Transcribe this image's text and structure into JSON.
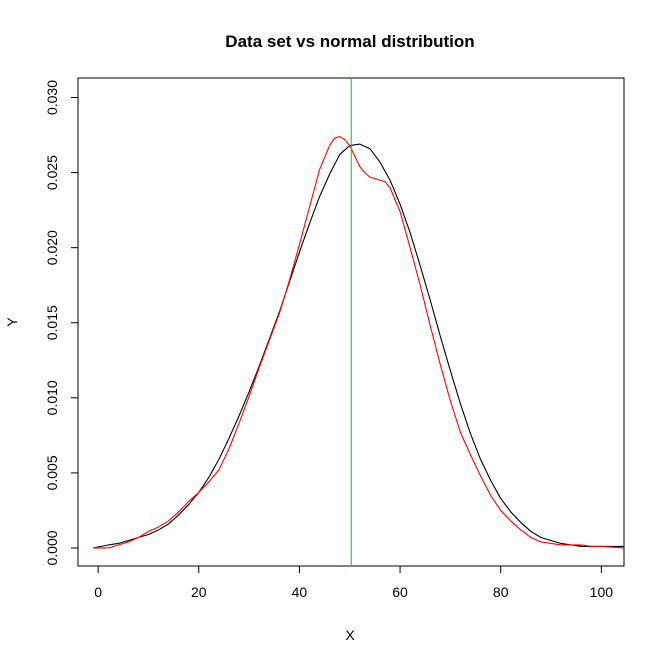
{
  "chart_data": {
    "type": "line",
    "title": "Data set vs normal distribution",
    "xlabel": "X",
    "ylabel": "Y",
    "xlim": [
      -4,
      104.5
    ],
    "ylim": [
      -0.0012,
      0.0313
    ],
    "x_ticks": [
      0,
      20,
      40,
      60,
      80,
      100
    ],
    "x_tick_labels": [
      "0",
      "20",
      "40",
      "60",
      "80",
      "100"
    ],
    "y_ticks": [
      0.0,
      0.005,
      0.01,
      0.015,
      0.02,
      0.025,
      0.03
    ],
    "y_tick_labels": [
      "0.000",
      "0.005",
      "0.010",
      "0.015",
      "0.020",
      "0.025",
      "0.030"
    ],
    "grid": false,
    "series": [
      {
        "color": "#000000",
        "x": [
          -1,
          2,
          4,
          6,
          8,
          10,
          12,
          14,
          16,
          18,
          20,
          22,
          24,
          26,
          28,
          30,
          32,
          34,
          36,
          38,
          40,
          42,
          44,
          46,
          48,
          50,
          52,
          54,
          56,
          58,
          60,
          62,
          64,
          66,
          68,
          70,
          72,
          74,
          76,
          78,
          80,
          82,
          84,
          86,
          88,
          90,
          92,
          94,
          96,
          98,
          100,
          104.5
        ],
        "y": [
          0.0,
          0.0002,
          0.0003,
          0.0005,
          0.0007,
          0.0009,
          0.0012,
          0.0016,
          0.0022,
          0.0029,
          0.0037,
          0.0047,
          0.0059,
          0.0073,
          0.0088,
          0.0104,
          0.0121,
          0.0139,
          0.0157,
          0.0177,
          0.0197,
          0.0216,
          0.0234,
          0.0249,
          0.0262,
          0.0268,
          0.0269,
          0.0266,
          0.0257,
          0.0245,
          0.0229,
          0.021,
          0.0188,
          0.0165,
          0.0141,
          0.0118,
          0.0096,
          0.0076,
          0.0059,
          0.0045,
          0.0033,
          0.0024,
          0.0017,
          0.0011,
          0.0007,
          0.0005,
          0.0003,
          0.0002,
          0.0001,
          0.0001,
          0.0001,
          0.0001
        ]
      },
      {
        "color": "#ff0000",
        "x": [
          -1,
          2,
          4,
          6,
          8,
          10,
          12,
          14,
          16,
          18,
          20,
          22,
          24,
          26,
          28,
          30,
          32,
          34,
          36,
          38,
          40,
          42,
          44,
          46,
          47,
          48,
          49,
          50,
          51,
          52,
          53,
          54,
          55,
          56,
          57,
          58,
          60,
          62,
          64,
          66,
          68,
          70,
          72,
          74,
          76,
          78,
          80,
          82,
          84,
          86,
          88,
          90,
          92,
          94,
          96,
          98,
          100,
          104.5
        ],
        "y": [
          0.0,
          0.0,
          0.0002,
          0.0004,
          0.0007,
          0.0011,
          0.0014,
          0.0018,
          0.0024,
          0.0031,
          0.0037,
          0.0044,
          0.0052,
          0.0066,
          0.0083,
          0.0101,
          0.012,
          0.0138,
          0.0156,
          0.0178,
          0.0202,
          0.0227,
          0.0252,
          0.0268,
          0.0273,
          0.0274,
          0.0272,
          0.0268,
          0.0261,
          0.0254,
          0.025,
          0.0247,
          0.0246,
          0.0245,
          0.0244,
          0.024,
          0.0224,
          0.02,
          0.0175,
          0.0148,
          0.0122,
          0.0098,
          0.0077,
          0.0062,
          0.0048,
          0.0035,
          0.0025,
          0.0018,
          0.0012,
          0.0007,
          0.0004,
          0.0003,
          0.0002,
          0.0002,
          0.0002,
          0.0001,
          0.0001,
          0.0
        ]
      }
    ],
    "vline": {
      "x": 50.3,
      "color": "#00cc00"
    }
  }
}
